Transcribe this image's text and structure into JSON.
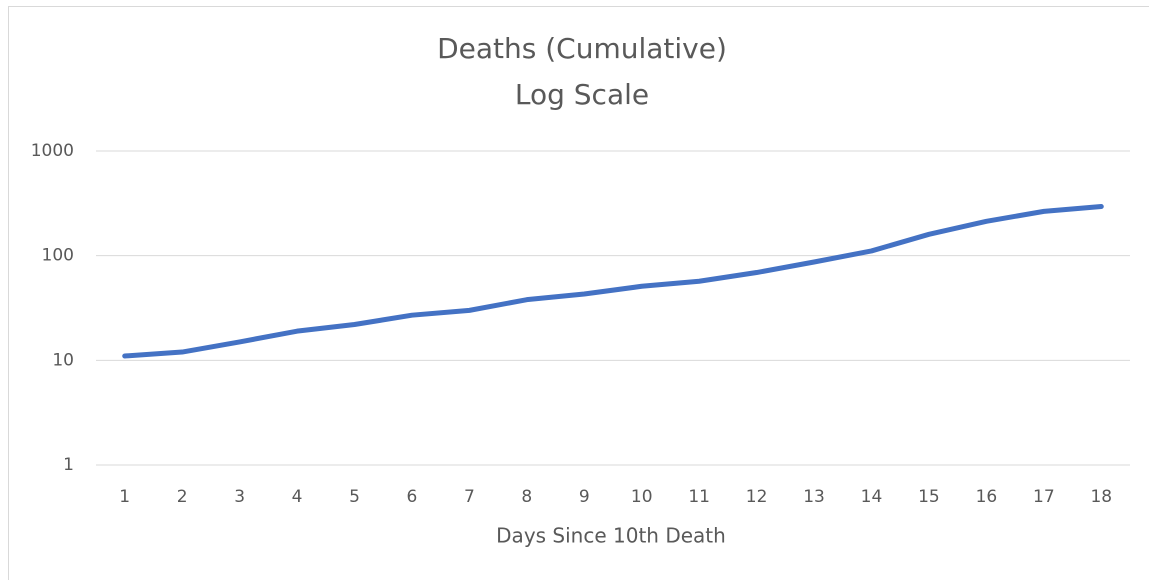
{
  "chart_data": {
    "type": "line",
    "title": "Deaths (Cumulative)",
    "subtitle": "Log Scale",
    "x_label": "Days Since 10th Death",
    "categories": [
      1,
      2,
      3,
      4,
      5,
      6,
      7,
      8,
      9,
      10,
      11,
      12,
      13,
      14,
      15,
      16,
      17,
      18
    ],
    "series": [
      {
        "name": "Deaths",
        "color": "#4472c4",
        "values": [
          11,
          12,
          15,
          19,
          22,
          27,
          30,
          38,
          43,
          51,
          57,
          69,
          87,
          111,
          160,
          213,
          265,
          295
        ]
      }
    ],
    "ylim": [
      1,
      1000
    ],
    "yticks": [
      1,
      10,
      100,
      1000
    ],
    "log_y": true,
    "grid": true
  }
}
